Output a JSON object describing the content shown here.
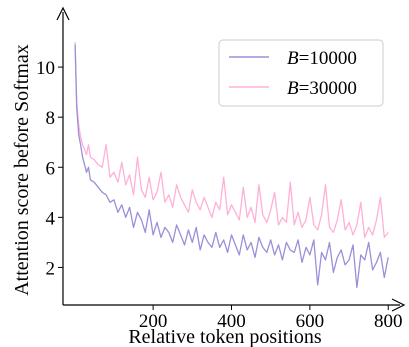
{
  "chart_data": {
    "type": "line",
    "title": "",
    "xlabel": "Relative token positions",
    "ylabel": "Attention score before Softmax",
    "xlim": [
      -30,
      830
    ],
    "ylim": [
      0.5,
      12.2
    ],
    "xticks": [
      200,
      400,
      600,
      800
    ],
    "yticks": [
      2,
      4,
      6,
      8,
      10
    ],
    "grid": false,
    "legend": {
      "position": "top-right",
      "prefix": "B",
      "entries": [
        "=10000",
        "=30000"
      ]
    },
    "series": [
      {
        "name": "B=10000",
        "color": "#9b8fd8",
        "x": [
          1,
          5,
          10,
          15,
          20,
          25,
          30,
          35,
          40,
          50,
          60,
          70,
          80,
          90,
          100,
          110,
          120,
          130,
          140,
          150,
          160,
          170,
          180,
          190,
          200,
          210,
          220,
          230,
          240,
          250,
          260,
          270,
          280,
          290,
          300,
          310,
          320,
          330,
          340,
          350,
          360,
          370,
          380,
          390,
          400,
          410,
          420,
          430,
          440,
          450,
          460,
          470,
          480,
          490,
          500,
          510,
          520,
          530,
          540,
          550,
          560,
          570,
          580,
          590,
          600,
          610,
          620,
          630,
          640,
          650,
          660,
          670,
          680,
          690,
          700,
          710,
          720,
          730,
          740,
          750,
          760,
          770,
          780,
          790,
          800
        ],
        "values": [
          10.9,
          8.4,
          7.3,
          6.9,
          6.4,
          6.1,
          5.8,
          6.0,
          5.5,
          5.4,
          5.2,
          5.0,
          4.9,
          4.6,
          4.7,
          4.2,
          4.5,
          4.0,
          4.4,
          3.6,
          4.2,
          3.9,
          3.4,
          4.3,
          3.3,
          3.8,
          3.2,
          3.6,
          3.4,
          3.0,
          3.7,
          3.3,
          2.9,
          3.5,
          3.0,
          3.6,
          2.7,
          3.3,
          3.0,
          2.8,
          3.4,
          2.8,
          3.1,
          2.6,
          3.3,
          2.9,
          2.5,
          3.3,
          2.7,
          3.0,
          2.4,
          3.2,
          2.8,
          2.6,
          3.1,
          2.5,
          2.9,
          2.3,
          3.0,
          2.7,
          2.6,
          3.1,
          2.2,
          2.8,
          2.5,
          3.1,
          1.3,
          2.6,
          2.3,
          3.0,
          1.8,
          2.4,
          2.7,
          2.1,
          2.3,
          2.9,
          1.2,
          2.5,
          2.3,
          3.0,
          1.9,
          2.2,
          2.6,
          1.6,
          2.4
        ]
      },
      {
        "name": "B=30000",
        "color": "#ffb0d8",
        "x": [
          1,
          5,
          10,
          15,
          20,
          25,
          30,
          35,
          40,
          50,
          60,
          70,
          80,
          90,
          100,
          110,
          120,
          130,
          140,
          150,
          160,
          170,
          180,
          190,
          200,
          210,
          220,
          230,
          240,
          250,
          260,
          270,
          280,
          290,
          300,
          310,
          320,
          330,
          340,
          350,
          360,
          370,
          380,
          390,
          400,
          410,
          420,
          430,
          440,
          450,
          460,
          470,
          480,
          490,
          500,
          510,
          520,
          530,
          540,
          550,
          560,
          570,
          580,
          590,
          600,
          610,
          620,
          630,
          640,
          650,
          660,
          670,
          680,
          690,
          700,
          710,
          720,
          730,
          740,
          750,
          760,
          770,
          780,
          790,
          800
        ],
        "values": [
          11.0,
          8.6,
          7.7,
          7.2,
          6.9,
          6.7,
          6.5,
          6.9,
          6.4,
          6.3,
          6.1,
          6.0,
          6.9,
          5.6,
          5.8,
          5.4,
          6.2,
          5.3,
          5.7,
          4.9,
          6.4,
          5.1,
          4.8,
          5.6,
          4.7,
          5.0,
          5.8,
          4.6,
          4.9,
          4.4,
          5.3,
          4.8,
          4.5,
          4.2,
          5.1,
          4.6,
          4.3,
          4.8,
          4.4,
          4.0,
          4.6,
          4.3,
          5.6,
          4.1,
          4.5,
          4.2,
          3.9,
          5.2,
          4.0,
          4.4,
          3.8,
          5.3,
          4.1,
          3.8,
          4.3,
          5.0,
          3.7,
          4.0,
          3.8,
          5.4,
          3.7,
          4.2,
          3.6,
          3.9,
          4.8,
          3.7,
          3.5,
          4.1,
          5.3,
          3.6,
          3.4,
          3.9,
          4.7,
          3.5,
          3.8,
          3.3,
          3.7,
          4.6,
          3.2,
          3.6,
          3.3,
          3.9,
          4.8,
          3.2,
          3.4
        ]
      }
    ]
  }
}
